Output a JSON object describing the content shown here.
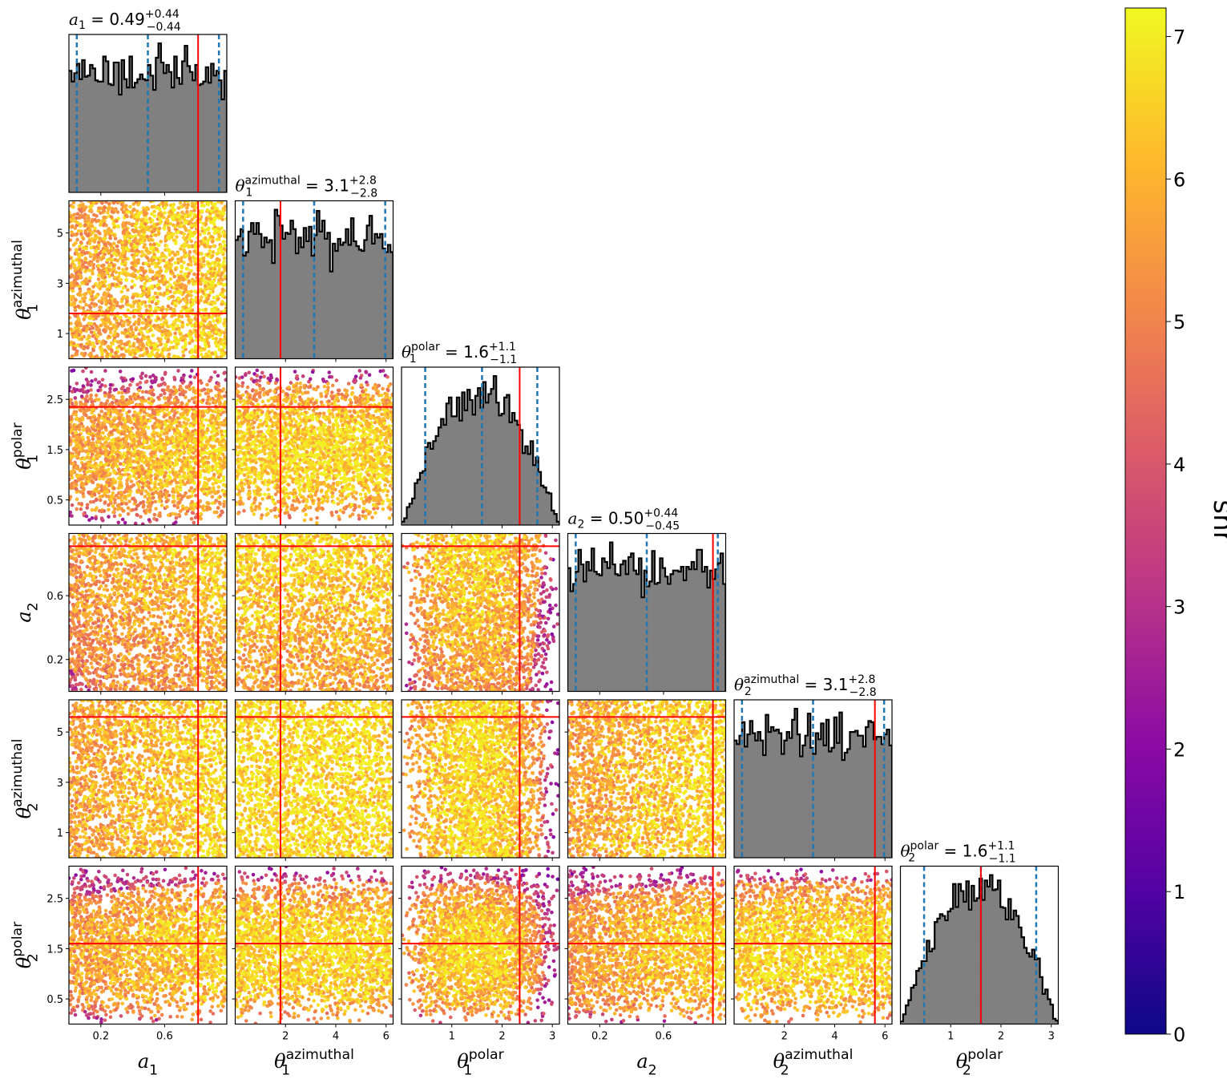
{
  "chart_data": {
    "type": "corner",
    "colorbar": {
      "label": "snr",
      "range": [
        0,
        7.2
      ],
      "ticks": [
        0,
        1,
        2,
        3,
        4,
        5,
        6,
        7
      ],
      "colormap": [
        "#0d0887",
        "#5302a3",
        "#8b0aa5",
        "#b83289",
        "#db5c68",
        "#f48849",
        "#febc2a",
        "#f0f921"
      ]
    },
    "parameters": [
      {
        "key": "a1",
        "sym": "a",
        "sub": "1",
        "sup": "",
        "range": [
          0,
          0.99
        ],
        "ticks": [
          0.2,
          0.6
        ],
        "truth": 0.81,
        "median": 0.49,
        "plus": "+0.44",
        "minus": "−0.44",
        "median_text": "0.49",
        "dist": "uniform"
      },
      {
        "key": "theta1az",
        "sym": "θ",
        "sub": "1",
        "sup": "azimuthal",
        "range": [
          0,
          6.28
        ],
        "ticks": [
          2,
          4,
          6
        ],
        "truth": 1.8,
        "median": 3.1,
        "plus": "+2.8",
        "minus": "−2.8",
        "median_text": "3.1",
        "dist": "uniform"
      },
      {
        "key": "theta1pol",
        "sym": "θ",
        "sub": "1",
        "sup": "polar",
        "range": [
          0,
          3.14
        ],
        "ticks": [
          1,
          2,
          3
        ],
        "ticks_y": [
          0.5,
          1.5,
          2.5
        ],
        "truth": 2.35,
        "median": 1.6,
        "plus": "+1.1",
        "minus": "−1.1",
        "median_text": "1.6",
        "dist": "sine"
      },
      {
        "key": "a2",
        "sym": "a",
        "sub": "2",
        "sup": "",
        "range": [
          0,
          0.99
        ],
        "ticks": [
          0.2,
          0.6
        ],
        "truth": 0.91,
        "median": 0.5,
        "plus": "+0.44",
        "minus": "−0.45",
        "median_text": "0.50",
        "dist": "uniform"
      },
      {
        "key": "theta2az",
        "sym": "θ",
        "sub": "2",
        "sup": "azimuthal",
        "range": [
          0,
          6.28
        ],
        "ticks": [
          2,
          4,
          6
        ],
        "ticks_y": [
          1,
          3,
          5
        ],
        "truth": 5.6,
        "median": 3.1,
        "plus": "+2.8",
        "minus": "−2.8",
        "median_text": "3.1",
        "dist": "uniform"
      },
      {
        "key": "theta2pol",
        "sym": "θ",
        "sub": "2",
        "sup": "polar",
        "range": [
          0,
          3.14
        ],
        "ticks": [
          1,
          2,
          3
        ],
        "ticks_y": [
          0.5,
          1.5,
          2.5
        ],
        "truth": 1.6,
        "median": 1.6,
        "plus": "+1.1",
        "minus": "−1.1",
        "median_text": "1.6",
        "dist": "sine"
      }
    ],
    "quantiles": [
      0.05,
      0.5,
      0.95
    ],
    "histogram_color": "#808080",
    "quantile_line_color": "#1f77b4",
    "truth_line_color": "#ff0000"
  }
}
